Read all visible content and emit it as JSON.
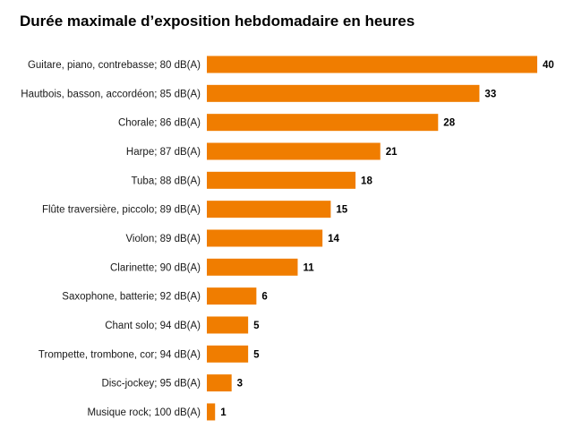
{
  "chart_data": {
    "type": "bar",
    "orientation": "horizontal",
    "title": "Durée maximale d’exposition hebdomadaire en heures",
    "categories": [
      "Guitare, piano, contrebasse; 80 dB(A)",
      "Hautbois, basson, accordéon; 85 dB(A)",
      "Chorale; 86 dB(A)",
      "Harpe; 87 dB(A)",
      "Tuba; 88 dB(A)",
      "Flûte traversière, piccolo; 89 dB(A)",
      "Violon; 89 dB(A)",
      "Clarinette; 90 dB(A)",
      "Saxophone, batterie; 92 dB(A)",
      "Chant solo; 94 dB(A)",
      "Trompette, trombone, cor; 94 dB(A)",
      "Disc-jockey; 95 dB(A)",
      "Musique rock; 100 dB(A)"
    ],
    "values": [
      40,
      33,
      28,
      21,
      18,
      15,
      14,
      11,
      6,
      5,
      5,
      3,
      1
    ],
    "xlim": [
      0,
      40
    ],
    "grid": false,
    "legend": "none",
    "bar_color": "#f07d00",
    "data_labels": true
  }
}
